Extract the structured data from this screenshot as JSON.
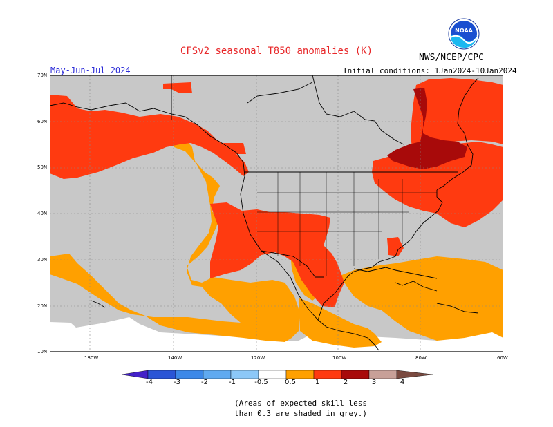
{
  "title": "CFSv2 seasonal T850 anomalies (K)",
  "agency": "NWS/NCEP/CPC",
  "logo_text": "NOAA",
  "period": "May-Jun-Jul 2024",
  "initial_conditions": "Initial conditions: 1Jan2024-10Jan2024",
  "lat_labels": [
    "70N",
    "60N",
    "50N",
    "40N",
    "30N",
    "20N",
    "10N"
  ],
  "lon_labels": [
    "180W",
    "140W",
    "120W",
    "100W",
    "80W",
    "60W"
  ],
  "colorbar": {
    "labels": [
      "-4",
      "-3",
      "-2",
      "-1",
      "-0.5",
      "0.5",
      "1",
      "2",
      "3",
      "4"
    ],
    "colors": [
      "#4422c8",
      "#2a55d6",
      "#3c88e8",
      "#60aaf0",
      "#8cc8f8",
      "#ffffff",
      "#ffa000",
      "#ff3a10",
      "#a80a0a",
      "#c8a098",
      "#7a4a40"
    ]
  },
  "colors": {
    "no_skill": "#c8c8c8",
    "ocean_unshaded": "#ffffff",
    "anomaly_0_5_to_1": "#ffa000",
    "anomaly_1_to_2": "#ff3a10",
    "anomaly_2_to_3": "#a80a0a"
  },
  "note_line1": "(Areas of expected skill less",
  "note_line2": "than 0.3 are shaded in grey.)"
}
